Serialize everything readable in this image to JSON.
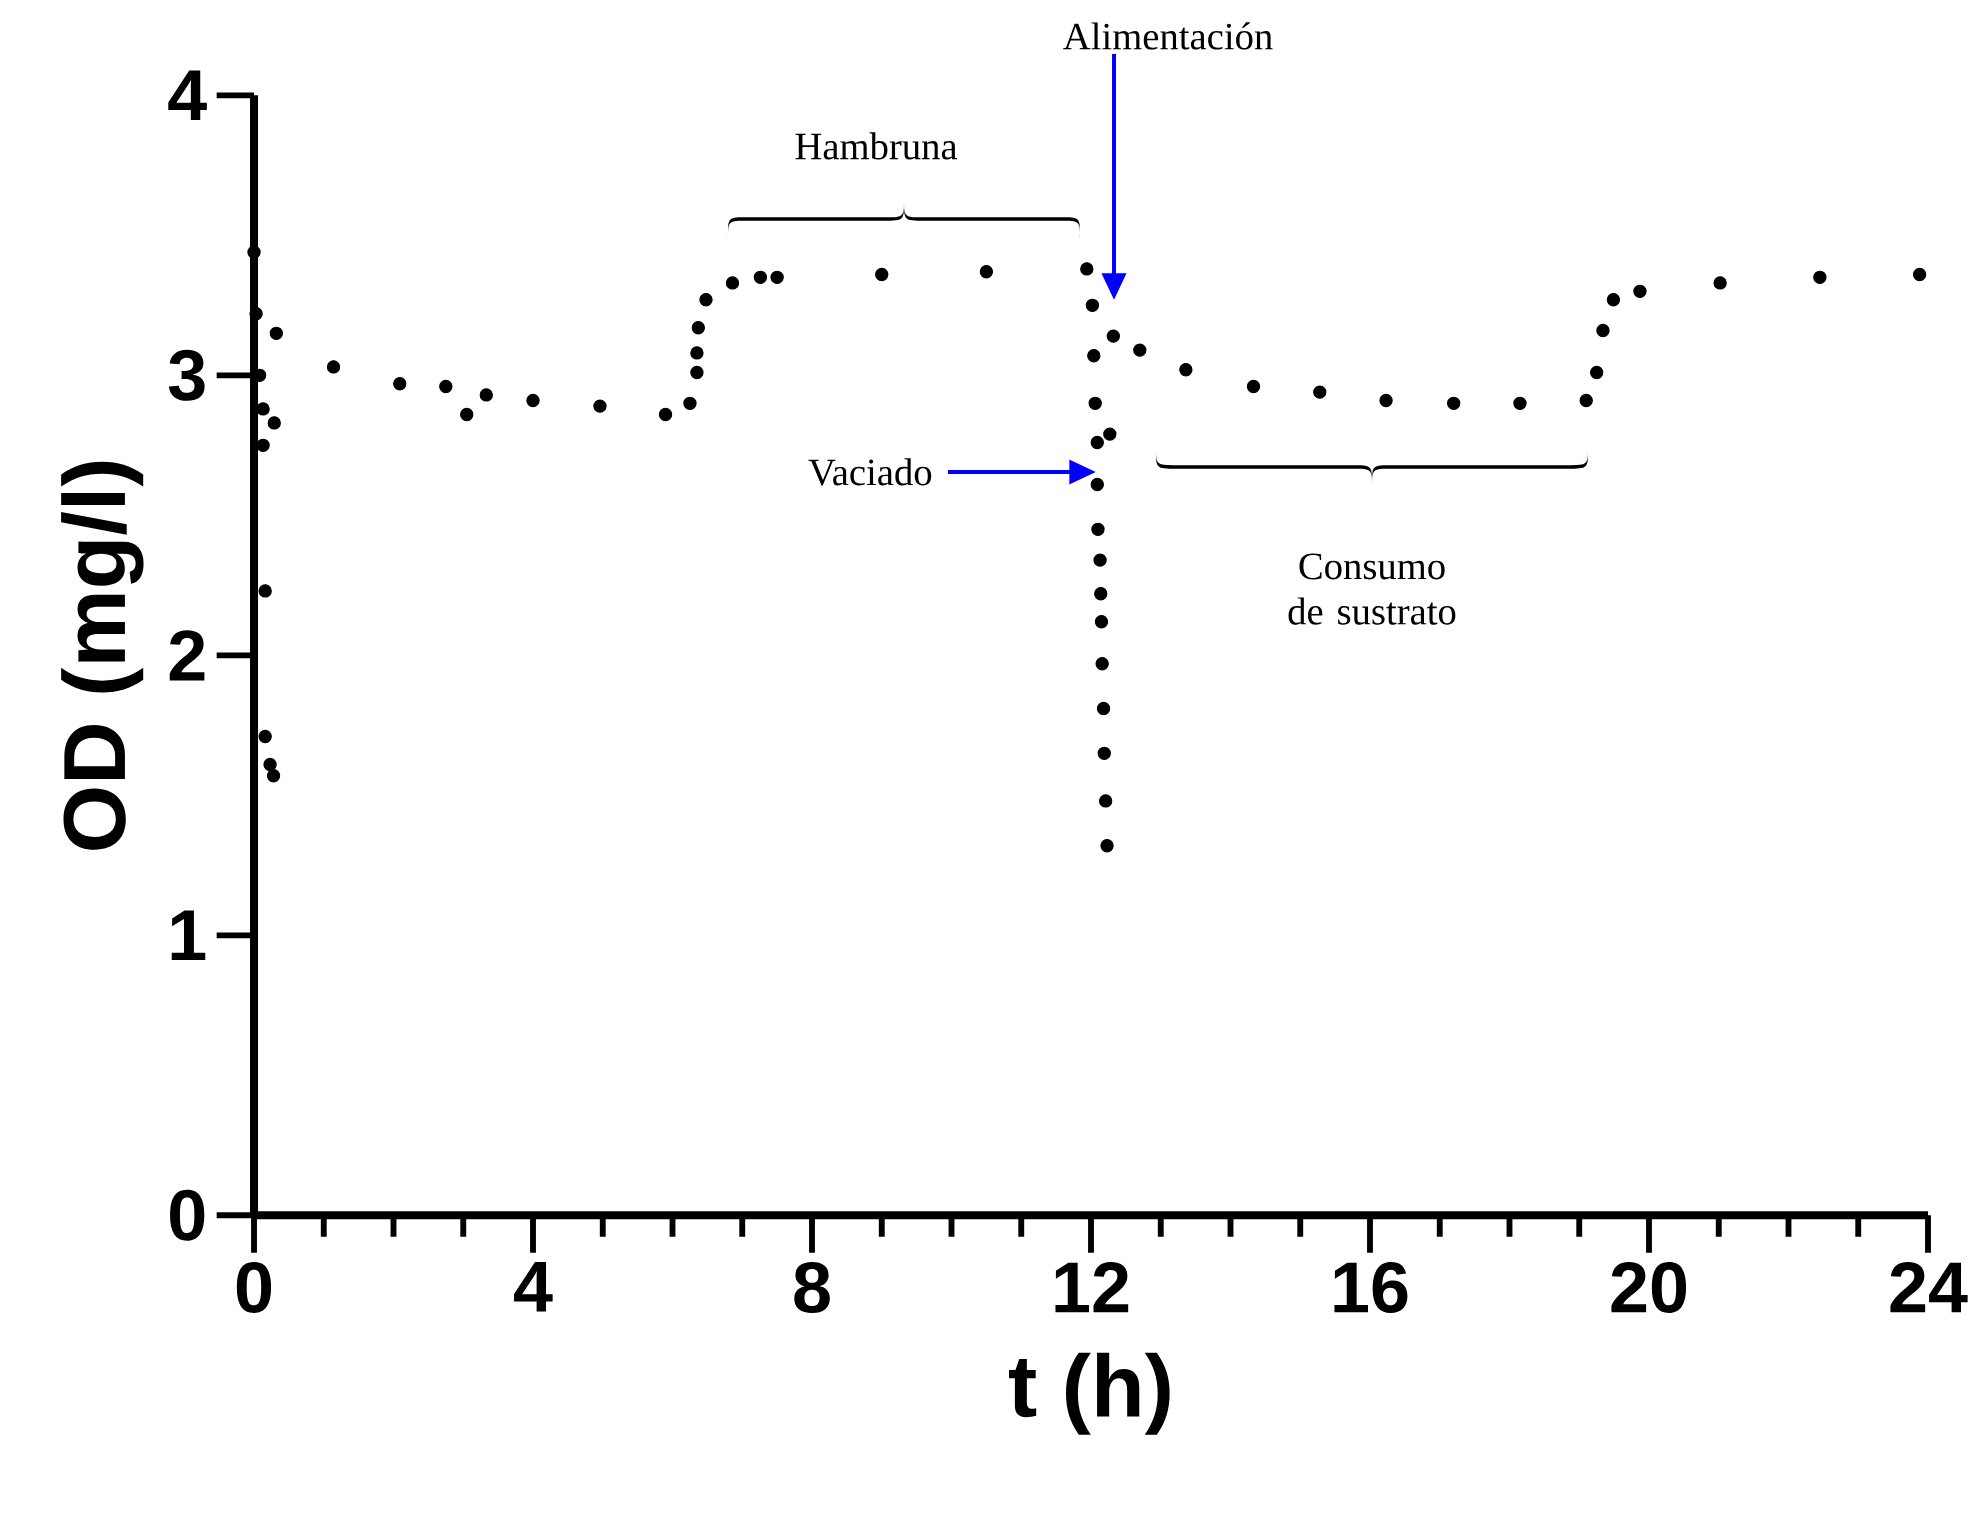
{
  "chart_data": {
    "type": "scatter",
    "xlabel": "t (h)",
    "ylabel": "OD (mg/l)",
    "grid": false,
    "xlim": [
      0,
      24
    ],
    "ylim": [
      0,
      4
    ],
    "xticks": [
      0,
      4,
      8,
      12,
      16,
      20,
      24
    ],
    "yticks": [
      0,
      1,
      2,
      3,
      4
    ],
    "annotations": [
      "Alimentación",
      "Vaciado",
      "Hambruna",
      "Consumo de sustrato"
    ],
    "series": [
      {
        "color": "#000000",
        "x": [
          0,
          0.03,
          0.08,
          0.13,
          0.13,
          0.29,
          0.16,
          0.16,
          0.23,
          0.28,
          0.32,
          1.14,
          2.09,
          2.75,
          3.05,
          3.33,
          4.0,
          4.96,
          5.9,
          6.25,
          6.35,
          6.35,
          6.37,
          6.48,
          6.86,
          7.26,
          7.5,
          9.0,
          10.5,
          11.94,
          12.02,
          12.04,
          12.06,
          12.09,
          12.27,
          12.09,
          12.1,
          12.13,
          12.14,
          12.15,
          12.16,
          12.18,
          12.19,
          12.21,
          12.23,
          12.32,
          12.7,
          13.36,
          14.33,
          15.28,
          16.23,
          17.2,
          18.15,
          19.1,
          19.25,
          19.34,
          19.49,
          19.87,
          21.02,
          22.45,
          23.88
        ],
        "values": [
          3.44,
          3.22,
          3.0,
          2.88,
          2.75,
          2.83,
          2.23,
          1.71,
          1.61,
          1.57,
          3.15,
          3.03,
          2.97,
          2.96,
          2.86,
          2.93,
          2.91,
          2.89,
          2.86,
          2.9,
          3.01,
          3.08,
          3.17,
          3.27,
          3.33,
          3.35,
          3.35,
          3.36,
          3.37,
          3.38,
          3.25,
          3.07,
          2.9,
          2.76,
          2.79,
          2.61,
          2.45,
          2.34,
          2.22,
          2.12,
          1.97,
          1.81,
          1.65,
          1.48,
          1.32,
          3.14,
          3.09,
          3.02,
          2.96,
          2.94,
          2.91,
          2.9,
          2.9,
          2.91,
          3.01,
          3.16,
          3.27,
          3.3,
          3.33,
          3.35,
          3.36
        ]
      }
    ]
  }
}
